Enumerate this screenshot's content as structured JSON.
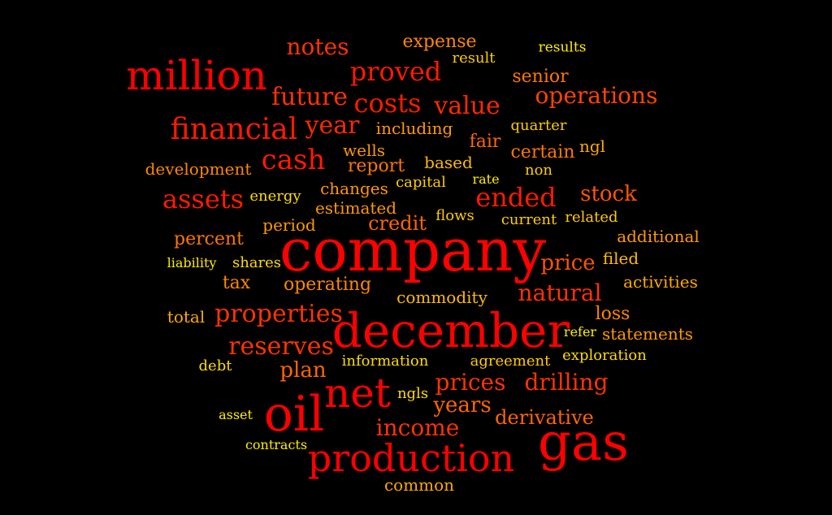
{
  "palette": {
    "red": "#ff0000",
    "orange_red": "#ff3300",
    "orange": "#ff6600",
    "amber": "#ff9900",
    "gold": "#ffcc00",
    "yellow": "#ffee00"
  },
  "words": [
    {
      "text": "company",
      "weight": 72,
      "color": "#ff0000"
    },
    {
      "text": "december",
      "weight": 58,
      "color": "#ff0000"
    },
    {
      "text": "gas",
      "weight": 64,
      "color": "#ff0000"
    },
    {
      "text": "oil",
      "weight": 60,
      "color": "#ff0000"
    },
    {
      "text": "net",
      "weight": 50,
      "color": "#ff0000"
    },
    {
      "text": "million",
      "weight": 50,
      "color": "#ff0000"
    },
    {
      "text": "production",
      "weight": 46,
      "color": "#ff0000"
    },
    {
      "text": "financial",
      "weight": 36,
      "color": "#ff1a00"
    },
    {
      "text": "cash",
      "weight": 34,
      "color": "#ff1a00"
    },
    {
      "text": "assets",
      "weight": 32,
      "color": "#ff1a00"
    },
    {
      "text": "ended",
      "weight": 32,
      "color": "#ff1a00"
    },
    {
      "text": "proved",
      "weight": 32,
      "color": "#ff1a00"
    },
    {
      "text": "costs",
      "weight": 32,
      "color": "#ff1a00"
    },
    {
      "text": "value",
      "weight": 30,
      "color": "#ff2a00"
    },
    {
      "text": "year",
      "weight": 30,
      "color": "#ff2a00"
    },
    {
      "text": "future",
      "weight": 30,
      "color": "#ff3300"
    },
    {
      "text": "properties",
      "weight": 30,
      "color": "#ff3300"
    },
    {
      "text": "reserves",
      "weight": 30,
      "color": "#ff3300"
    },
    {
      "text": "notes",
      "weight": 28,
      "color": "#ff3300"
    },
    {
      "text": "income",
      "weight": 28,
      "color": "#ff3300"
    },
    {
      "text": "prices",
      "weight": 28,
      "color": "#ff3300"
    },
    {
      "text": "drilling",
      "weight": 28,
      "color": "#ff3300"
    },
    {
      "text": "natural",
      "weight": 28,
      "color": "#ff3300"
    },
    {
      "text": "operations",
      "weight": 28,
      "color": "#ff4400"
    },
    {
      "text": "stock",
      "weight": 26,
      "color": "#ff5500"
    },
    {
      "text": "price",
      "weight": 26,
      "color": "#ff5500"
    },
    {
      "text": "years",
      "weight": 26,
      "color": "#ff6600"
    },
    {
      "text": "plan",
      "weight": 26,
      "color": "#ff6600"
    },
    {
      "text": "derivative",
      "weight": 24,
      "color": "#ff6600"
    },
    {
      "text": "credit",
      "weight": 24,
      "color": "#ff6600"
    },
    {
      "text": "fair",
      "weight": 22,
      "color": "#ff6600"
    },
    {
      "text": "certain",
      "weight": 22,
      "color": "#ff7700"
    },
    {
      "text": "report",
      "weight": 22,
      "color": "#ff7700"
    },
    {
      "text": "percent",
      "weight": 22,
      "color": "#ff7700"
    },
    {
      "text": "senior",
      "weight": 22,
      "color": "#ff7700"
    },
    {
      "text": "expense",
      "weight": 22,
      "color": "#ff8800"
    },
    {
      "text": "operating",
      "weight": 22,
      "color": "#ff8800"
    },
    {
      "text": "loss",
      "weight": 22,
      "color": "#ff8800"
    },
    {
      "text": "tax",
      "weight": 22,
      "color": "#ff8800"
    },
    {
      "text": "development",
      "weight": 20,
      "color": "#ff8800"
    },
    {
      "text": "wells",
      "weight": 20,
      "color": "#ff9900"
    },
    {
      "text": "including",
      "weight": 20,
      "color": "#ff9900"
    },
    {
      "text": "changes",
      "weight": 20,
      "color": "#ff9900"
    },
    {
      "text": "estimated",
      "weight": 20,
      "color": "#ff9900"
    },
    {
      "text": "period",
      "weight": 20,
      "color": "#ff9900"
    },
    {
      "text": "additional",
      "weight": 20,
      "color": "#ff9900"
    },
    {
      "text": "statements",
      "weight": 20,
      "color": "#ff9900"
    },
    {
      "text": "activities",
      "weight": 20,
      "color": "#ffaa00"
    },
    {
      "text": "ngl",
      "weight": 20,
      "color": "#ffaa00"
    },
    {
      "text": "total",
      "weight": 20,
      "color": "#ffaa00"
    },
    {
      "text": "common",
      "weight": 20,
      "color": "#ffaa00"
    },
    {
      "text": "commodity",
      "weight": 20,
      "color": "#ffbb00"
    },
    {
      "text": "based",
      "weight": 20,
      "color": "#ffbb00"
    },
    {
      "text": "filed",
      "weight": 20,
      "color": "#ffbb00"
    },
    {
      "text": "result",
      "weight": 18,
      "color": "#ffcc00"
    },
    {
      "text": "quarter",
      "weight": 18,
      "color": "#ffcc00"
    },
    {
      "text": "capital",
      "weight": 18,
      "color": "#ffcc00"
    },
    {
      "text": "flows",
      "weight": 18,
      "color": "#ffcc00"
    },
    {
      "text": "current",
      "weight": 18,
      "color": "#ffcc00"
    },
    {
      "text": "related",
      "weight": 18,
      "color": "#ffcc00"
    },
    {
      "text": "non",
      "weight": 18,
      "color": "#ffcc00"
    },
    {
      "text": "information",
      "weight": 18,
      "color": "#ffdd00"
    },
    {
      "text": "agreement",
      "weight": 18,
      "color": "#ffcc00"
    },
    {
      "text": "exploration",
      "weight": 18,
      "color": "#ffdd00"
    },
    {
      "text": "shares",
      "weight": 18,
      "color": "#ffdd00"
    },
    {
      "text": "energy",
      "weight": 18,
      "color": "#ffdd00"
    },
    {
      "text": "debt",
      "weight": 18,
      "color": "#ffdd00"
    },
    {
      "text": "ngls",
      "weight": 18,
      "color": "#ffdd00"
    },
    {
      "text": "results",
      "weight": 17,
      "color": "#ffee00"
    },
    {
      "text": "liability",
      "weight": 16,
      "color": "#ffee00"
    },
    {
      "text": "rate",
      "weight": 16,
      "color": "#ffee00"
    },
    {
      "text": "refer",
      "weight": 16,
      "color": "#ffee00"
    },
    {
      "text": "asset",
      "weight": 16,
      "color": "#ffee00"
    },
    {
      "text": "contracts",
      "weight": 16,
      "color": "#ffee00"
    }
  ]
}
